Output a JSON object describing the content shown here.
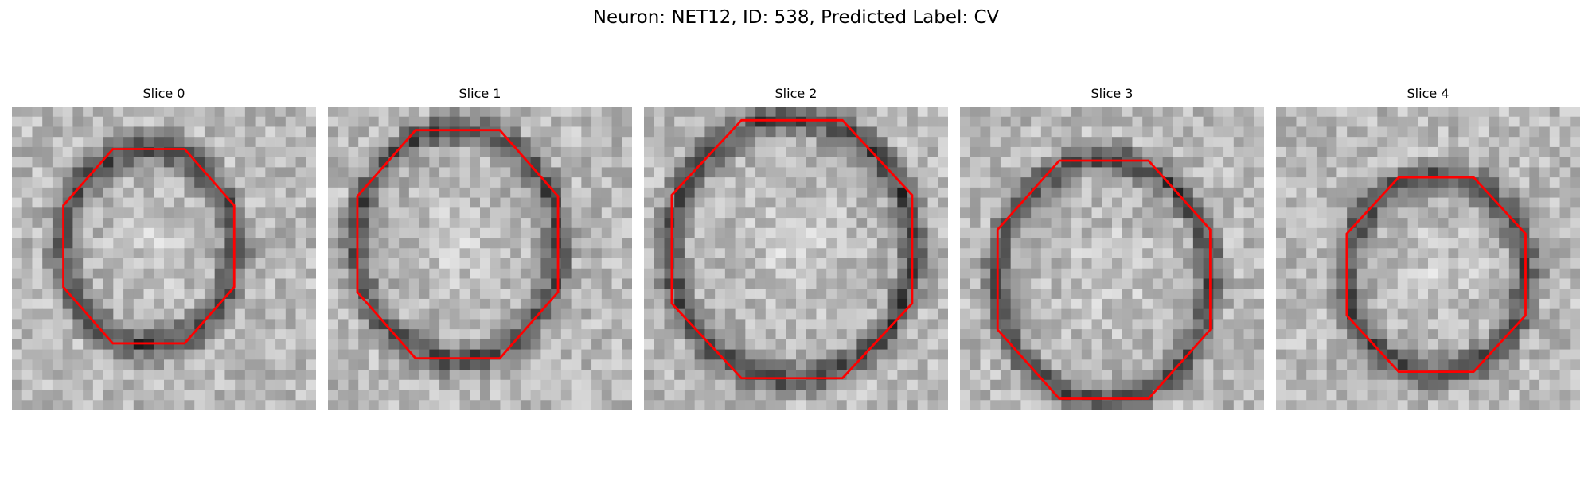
{
  "figure": {
    "title": "Neuron: NET12, ID: 538, Predicted Label: CV"
  },
  "panels": [
    {
      "title": "Slice 0"
    },
    {
      "title": "Slice 1"
    },
    {
      "title": "Slice 2"
    },
    {
      "title": "Slice 3"
    },
    {
      "title": "Slice 4"
    }
  ],
  "colors": {
    "contour": "#ff0000",
    "background": "#ffffff"
  }
}
